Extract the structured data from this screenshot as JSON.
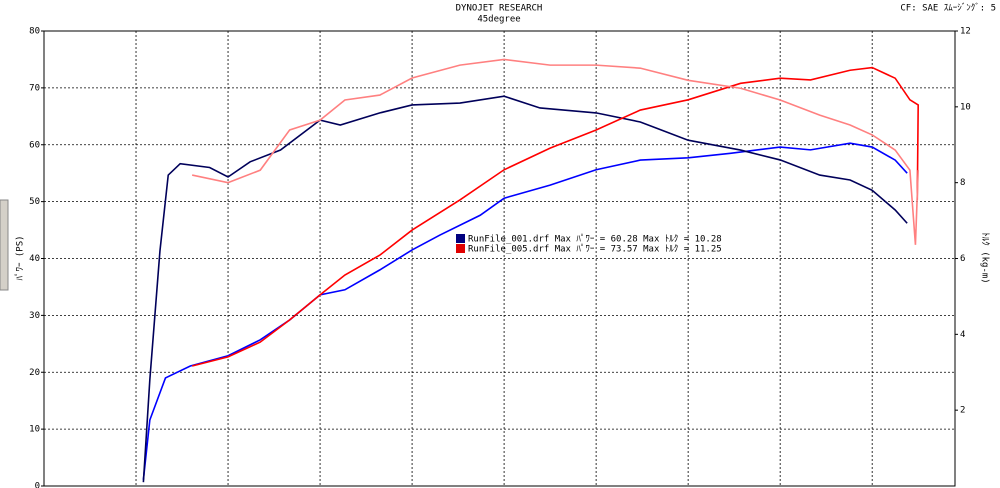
{
  "chart_data": {
    "type": "line",
    "title": "DYNOJET  RESEARCH",
    "subtitle": "45degree",
    "corner_note": "CF: SAE  ｽﾑｰｼﾞﾝｸﾞ: 5",
    "y_label": "ﾊﾟﾜｰ (PS)",
    "y2_label": "ﾄﾙｸ (kg-m)",
    "xlim": [
      0,
      9.9
    ],
    "xticks": [
      0,
      1,
      2,
      3,
      4,
      5,
      6,
      7,
      8,
      9
    ],
    "ylim": [
      0,
      80
    ],
    "yticks": [
      0,
      10,
      20,
      30,
      40,
      50,
      60,
      70,
      80
    ],
    "y2lim": [
      0,
      12
    ],
    "y2ticks": [
      2,
      4,
      6,
      8,
      10,
      12
    ],
    "grid": true,
    "legend": [
      {
        "color": "#00007f",
        "label": "RunFile_001.drf Max ﾊﾟﾜｰ = 60.28   Max ﾄﾙｸ = 10.28"
      },
      {
        "color": "#e00000",
        "label": "RunFile_005.drf Max ﾊﾟﾜｰ = 73.57   Max ﾄﾙｸ = 11.25"
      }
    ],
    "series": [
      {
        "name": "RunFile_001 ﾊﾟﾜｰ",
        "color": "#0000ff",
        "axis": "y",
        "x": [
          1.08,
          1.15,
          1.32,
          1.59,
          2.0,
          2.35,
          2.67,
          3.0,
          3.27,
          3.65,
          4.0,
          4.3,
          4.74,
          5.0,
          5.5,
          6.0,
          6.48,
          7.0,
          7.46,
          8.0,
          8.33,
          8.76,
          9.0,
          9.25,
          9.38
        ],
        "values": [
          1.1,
          11.6,
          19,
          21.1,
          22.9,
          25.7,
          29.2,
          33.6,
          34.5,
          38,
          41.5,
          44.1,
          47.6,
          50.6,
          52.9,
          55.6,
          57.3,
          57.7,
          58.5,
          59.6,
          59.1,
          60.28,
          59.6,
          57.3,
          55.0
        ]
      },
      {
        "name": "RunFile_001 ﾄﾙｸ",
        "color": "#00005a",
        "axis": "y2",
        "x": [
          1.08,
          1.15,
          1.26,
          1.35,
          1.48,
          1.8,
          2.0,
          2.24,
          2.57,
          3.0,
          3.22,
          3.65,
          4.0,
          4.52,
          5.0,
          5.39,
          6.0,
          6.48,
          7.0,
          7.57,
          8.0,
          8.43,
          8.76,
          9.0,
          9.25,
          9.38
        ],
        "values": [
          0.1,
          2.8,
          6.2,
          8.2,
          8.5,
          8.4,
          8.15,
          8.55,
          8.86,
          9.65,
          9.52,
          9.84,
          10.05,
          10.1,
          10.28,
          9.97,
          9.84,
          9.6,
          9.12,
          8.86,
          8.6,
          8.2,
          8.07,
          7.8,
          7.28,
          6.93
        ]
      },
      {
        "name": "RunFile_005 ﾊﾟﾜｰ",
        "color": "#ff0000",
        "axis": "y",
        "x": [
          1.61,
          2.0,
          2.35,
          2.67,
          3.0,
          3.27,
          3.65,
          4.0,
          4.52,
          5.0,
          5.5,
          6.0,
          6.48,
          7.0,
          7.57,
          8.0,
          8.33,
          8.76,
          9.0,
          9.25,
          9.41,
          9.5,
          9.49
        ],
        "values": [
          21.1,
          22.7,
          25.3,
          29.2,
          33.6,
          37.1,
          40.6,
          45,
          50.3,
          55.6,
          59.4,
          62.6,
          66.1,
          67.9,
          70.8,
          71.7,
          71.4,
          73.1,
          73.57,
          71.7,
          67.9,
          67,
          50.3
        ]
      },
      {
        "name": "RunFile_005 ﾄﾙｸ",
        "color": "#ff8080",
        "axis": "y2",
        "x": [
          1.61,
          2.0,
          2.35,
          2.67,
          3.0,
          3.27,
          3.65,
          4.0,
          4.52,
          5.0,
          5.5,
          6.0,
          6.48,
          7.0,
          7.57,
          8.0,
          8.43,
          8.76,
          9.0,
          9.25,
          9.41,
          9.47,
          9.5
        ],
        "values": [
          8.2,
          8.0,
          8.33,
          9.39,
          9.65,
          10.18,
          10.31,
          10.76,
          11.1,
          11.25,
          11.1,
          11.1,
          11.02,
          10.7,
          10.49,
          10.18,
          9.78,
          9.52,
          9.26,
          8.86,
          8.33,
          6.36,
          8.33
        ]
      }
    ]
  }
}
